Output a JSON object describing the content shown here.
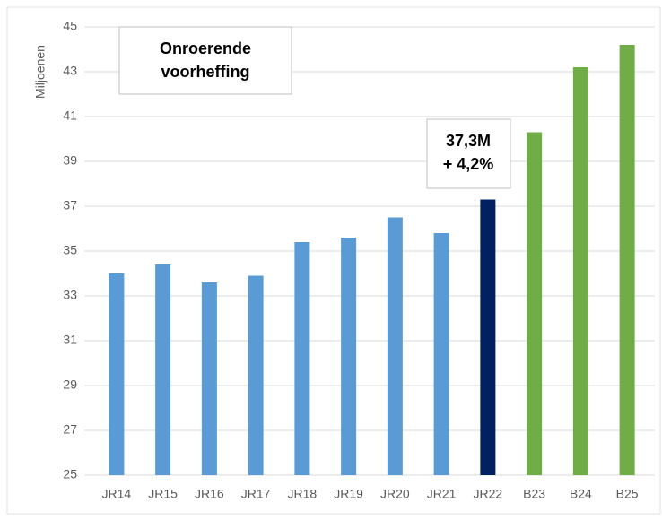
{
  "chart_data": {
    "type": "bar",
    "title": [
      "Onroerende",
      "voorheffing"
    ],
    "y_label": "Miljoenen",
    "annotation": [
      "37,3M",
      "+ 4,2%"
    ],
    "categories": [
      "JR14",
      "JR15",
      "JR16",
      "JR17",
      "JR18",
      "JR19",
      "JR20",
      "JR21",
      "JR22",
      "B23",
      "B24",
      "B25"
    ],
    "values": [
      34.0,
      34.4,
      33.6,
      33.9,
      35.4,
      35.6,
      36.5,
      35.8,
      37.3,
      40.3,
      43.2,
      44.2
    ],
    "colors": [
      "#5b9bd5",
      "#5b9bd5",
      "#5b9bd5",
      "#5b9bd5",
      "#5b9bd5",
      "#5b9bd5",
      "#5b9bd5",
      "#5b9bd5",
      "#002060",
      "#70ad47",
      "#70ad47",
      "#70ad47"
    ],
    "ylim": [
      25,
      45
    ],
    "yticks": [
      25,
      27,
      29,
      31,
      33,
      35,
      37,
      39,
      41,
      43,
      45
    ],
    "grid": true
  }
}
